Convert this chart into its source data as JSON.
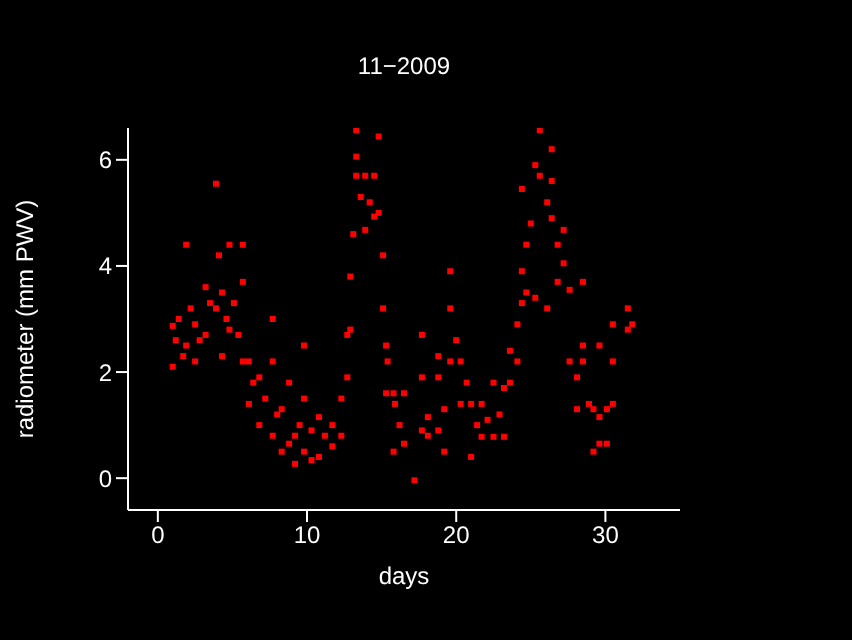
{
  "chart_data": {
    "type": "scatter",
    "title": "11−2009",
    "xlabel": "days",
    "ylabel": "radiometer (mm PWV)",
    "xlim": [
      -2,
      35
    ],
    "ylim": [
      -0.6,
      6.6
    ],
    "xticks": [
      0,
      10,
      20,
      30
    ],
    "yticks": [
      0,
      2,
      4,
      6
    ],
    "grid": false,
    "legend": false,
    "marker": "square",
    "series": [
      {
        "color": "#ff0000",
        "x": [
          1.0,
          1.0,
          1.2,
          1.4,
          1.7,
          1.9,
          1.9,
          2.2,
          2.5,
          2.5,
          2.8,
          3.2,
          3.2,
          3.5,
          3.9,
          3.9,
          4.1,
          4.3,
          4.3,
          4.6,
          4.8,
          4.8,
          5.1,
          5.4,
          5.7,
          5.7,
          5.7,
          6.1,
          6.1,
          6.4,
          6.8,
          6.8,
          7.2,
          7.7,
          7.7,
          7.7,
          8.0,
          8.3,
          8.3,
          8.8,
          8.8,
          9.2,
          9.2,
          9.5,
          9.8,
          9.8,
          9.8,
          10.3,
          10.3,
          10.8,
          10.8,
          11.2,
          11.7,
          11.7,
          12.3,
          12.3,
          12.7,
          12.7,
          12.9,
          12.9,
          13.1,
          13.3,
          13.3,
          13.3,
          13.6,
          13.9,
          13.9,
          14.2,
          14.5,
          14.5,
          14.8,
          14.8,
          15.1,
          15.1,
          15.3,
          15.3,
          15.4,
          15.8,
          15.8,
          15.9,
          16.2,
          16.5,
          16.5,
          17.2,
          17.7,
          17.7,
          17.7,
          18.1,
          18.1,
          18.8,
          18.8,
          18.8,
          19.2,
          19.2,
          19.6,
          19.6,
          19.6,
          20.0,
          20.3,
          20.3,
          20.7,
          21.0,
          21.0,
          21.4,
          21.7,
          21.7,
          22.1,
          22.5,
          22.5,
          22.9,
          23.2,
          23.2,
          23.6,
          23.6,
          24.1,
          24.1,
          24.4,
          24.4,
          24.4,
          24.7,
          24.7,
          25.0,
          25.3,
          25.3,
          25.6,
          25.6,
          26.1,
          26.1,
          26.4,
          26.4,
          26.4,
          26.8,
          26.8,
          27.2,
          27.2,
          27.6,
          27.6,
          28.1,
          28.1,
          28.5,
          28.5,
          28.5,
          28.9,
          29.2,
          29.2,
          29.6,
          29.6,
          29.6,
          30.1,
          30.1,
          30.5,
          30.5,
          30.5,
          31.5,
          31.5,
          31.8
        ],
        "values": [
          2.87,
          2.1,
          2.6,
          3.0,
          2.3,
          4.4,
          2.5,
          3.2,
          2.9,
          2.2,
          2.6,
          3.6,
          2.7,
          3.3,
          5.55,
          3.2,
          4.2,
          3.5,
          2.3,
          3.0,
          4.4,
          2.8,
          3.3,
          2.7,
          4.4,
          3.7,
          2.2,
          2.2,
          1.4,
          1.8,
          1.9,
          1.0,
          1.5,
          3.0,
          2.2,
          0.8,
          1.2,
          1.3,
          0.5,
          1.8,
          0.65,
          0.8,
          0.27,
          1.0,
          2.5,
          1.5,
          0.5,
          0.9,
          0.34,
          1.15,
          0.4,
          0.8,
          1.0,
          0.6,
          1.5,
          0.8,
          2.7,
          1.9,
          3.8,
          2.8,
          4.6,
          6.56,
          6.06,
          5.7,
          5.3,
          5.7,
          4.68,
          5.2,
          5.7,
          4.93,
          6.44,
          5.0,
          4.2,
          3.2,
          2.5,
          1.6,
          2.2,
          1.6,
          0.5,
          1.4,
          1.0,
          1.6,
          0.65,
          -0.04,
          2.7,
          1.9,
          0.9,
          1.15,
          0.8,
          2.3,
          1.9,
          0.9,
          1.3,
          0.5,
          3.9,
          3.2,
          2.2,
          2.6,
          2.2,
          1.4,
          1.8,
          1.4,
          0.4,
          1.0,
          1.4,
          0.78,
          1.1,
          1.8,
          0.78,
          1.2,
          1.7,
          0.78,
          2.4,
          1.8,
          2.9,
          2.2,
          5.45,
          3.9,
          3.3,
          4.4,
          3.5,
          4.8,
          5.9,
          3.4,
          6.56,
          5.7,
          5.2,
          3.2,
          6.2,
          5.6,
          4.9,
          4.4,
          3.7,
          4.68,
          4.05,
          3.55,
          2.2,
          1.9,
          1.3,
          3.7,
          2.5,
          2.2,
          1.4,
          1.3,
          0.5,
          2.5,
          1.15,
          0.65,
          1.3,
          0.65,
          2.9,
          2.2,
          1.4,
          3.2,
          2.8,
          2.9
        ]
      }
    ]
  }
}
